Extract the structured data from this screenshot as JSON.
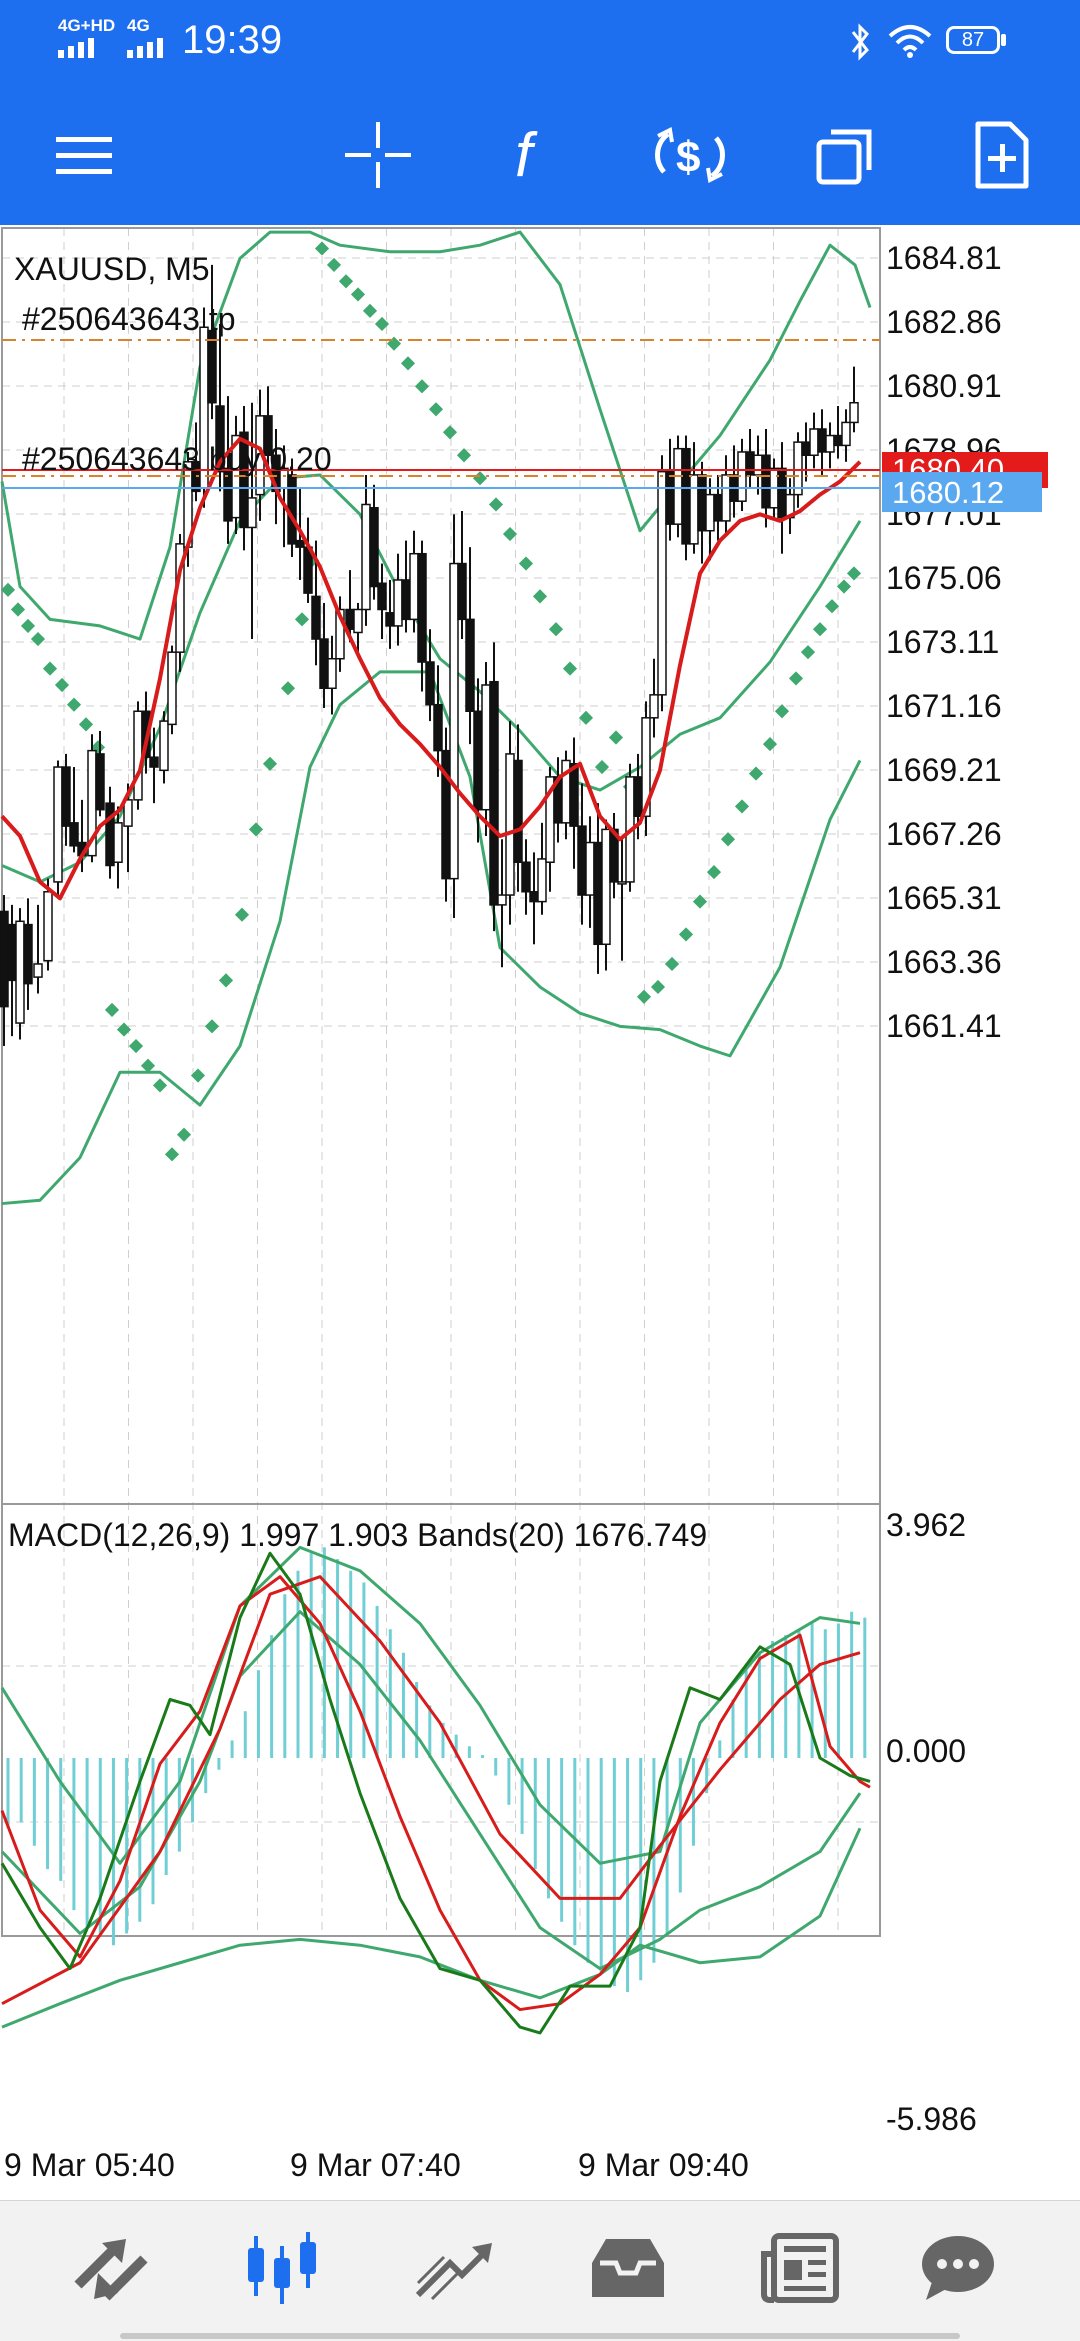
{
  "status_bar": {
    "network_1": "4G+HD",
    "network_2": "4G",
    "time": "19:39",
    "battery": "87"
  },
  "toolbar": {
    "icons": [
      "menu-icon",
      "crosshair-icon",
      "indicators-icon",
      "trade-icon",
      "windows-icon",
      "new-order-icon"
    ]
  },
  "chart": {
    "symbol_label": "XAUUSD, M5",
    "order_label_1": "#250643643 tp",
    "order_label_2": "#250643643 buy 0.20",
    "bid_price_tag": "1680.40",
    "ask_price_tag": "1680.12",
    "price_ticks": [
      "1684.81",
      "1682.86",
      "1680.91",
      "1678.96",
      "1677.01",
      "1675.06",
      "1673.11",
      "1671.16",
      "1669.21",
      "1667.26",
      "1665.31",
      "1663.36",
      "1661.41"
    ],
    "macd_label": "MACD(12,26,9) 1.997 1.903 Bands(20) 1676.749",
    "macd_ticks": [
      "3.962",
      "0.000",
      "-5.986"
    ],
    "time_labels": [
      "9 Mar 05:40",
      "9 Mar 07:40",
      "9 Mar 09:40"
    ],
    "colors": {
      "bollinger": "#3fa86e",
      "ma": "#d81b1b",
      "sar": "#3fa86e",
      "histogram": "#6fcfd4",
      "signal_green": "#1a7a1a",
      "bid_tag": "#e31b1b",
      "ask_tag": "#5aa9f0",
      "tp_line": "#d9822b"
    }
  },
  "bottom_nav": {
    "items": [
      "quotes-icon",
      "chart-icon",
      "trade-icon",
      "history-icon",
      "news-icon",
      "messages-icon"
    ],
    "active": "chart-icon"
  }
}
